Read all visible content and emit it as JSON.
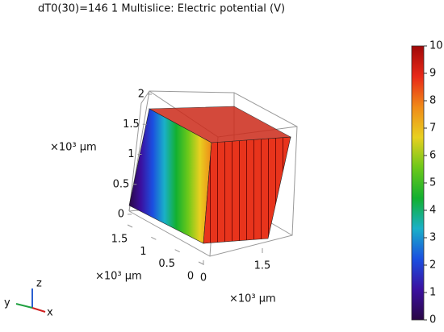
{
  "chart_data": {
    "type": "multislice",
    "title": "dT0(30)=146 1   Multislice: Electric potential (V)",
    "xlabel": "×10³ μm",
    "ylabel": "×10³ μm",
    "zlabel": "×10³ μm",
    "xlim": [
      0,
      1.5
    ],
    "xticks": [
      0,
      1.5
    ],
    "ylim": [
      0,
      1.5
    ],
    "yticks": [
      0,
      0.5,
      1,
      1.5
    ],
    "zlim": [
      0,
      2
    ],
    "zticks": [
      0,
      0.5,
      1,
      1.5,
      2
    ],
    "clim": [
      0,
      10
    ],
    "cticks": [
      0,
      1,
      2,
      3,
      4,
      5,
      6,
      7,
      8,
      9,
      10
    ],
    "colormap": [
      "#2a0845",
      "#3b10a0",
      "#1b4fe0",
      "#1ab0c8",
      "#12b030",
      "#6cc81a",
      "#e8d020",
      "#f08a18",
      "#e82818",
      "#a00808"
    ],
    "triad": [
      "x",
      "y",
      "z"
    ]
  }
}
